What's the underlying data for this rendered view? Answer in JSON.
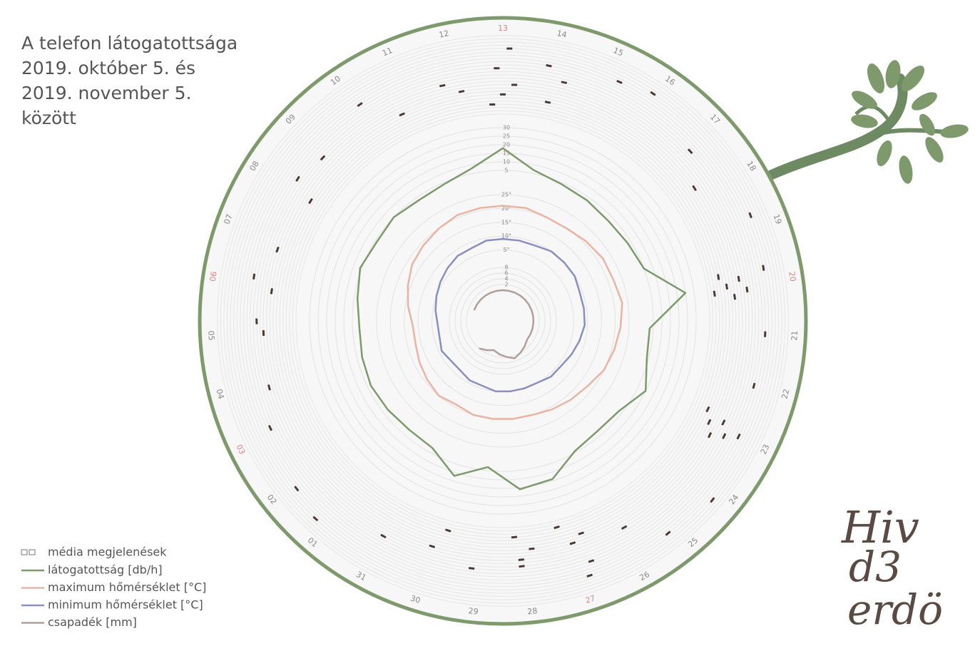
{
  "chart_data": {
    "type": "radial",
    "title": [
      "A telefon látogatottsága",
      "2019. október 5. és",
      "2019. november 5.",
      "között"
    ],
    "logo": [
      "Hiv",
      "d3",
      "erdö"
    ],
    "categories": [
      "05",
      "06",
      "07",
      "08",
      "09",
      "10",
      "11",
      "12",
      "13",
      "14",
      "15",
      "16",
      "17",
      "18",
      "19",
      "20",
      "21",
      "22",
      "23",
      "24",
      "25",
      "26",
      "27",
      "28",
      "29",
      "30",
      "31",
      "01",
      "02",
      "03",
      "04"
    ],
    "weekend": [
      1,
      8,
      15,
      22,
      29
    ],
    "weekend_color": "#e88080",
    "legend_media": "média megjelenések",
    "series": [
      {
        "name": "látogatottság [db/h]",
        "color": "#7e9a6c",
        "ring": "visits",
        "values": [
          1,
          3,
          6,
          4,
          5,
          3,
          4,
          8,
          18,
          7,
          4,
          3,
          2,
          3,
          5,
          25,
          3,
          4,
          10,
          3,
          2,
          4,
          14,
          16,
          3,
          12,
          2,
          1,
          2,
          3,
          2
        ]
      },
      {
        "name": "maximum hőmérséklet [°C]",
        "color": "#e8b4a4",
        "ring": "temp",
        "values": [
          12,
          14,
          16,
          18,
          19,
          20,
          21,
          21,
          21,
          21,
          20,
          20,
          21,
          22,
          22,
          23,
          22,
          21,
          20,
          18,
          17,
          16,
          15,
          15,
          15,
          15,
          14,
          15,
          14,
          13,
          12
        ]
      },
      {
        "name": "minimum hőmérséklet [°C]",
        "color": "#8a8fbf",
        "ring": "temp",
        "values": [
          3,
          4,
          5,
          6,
          7,
          8,
          8,
          9,
          9,
          9,
          9,
          10,
          10,
          10,
          9,
          9,
          9,
          8,
          7,
          6,
          6,
          5,
          5,
          5,
          5,
          4,
          4,
          3,
          3,
          4,
          3
        ]
      },
      {
        "name": "csapadék [mm]",
        "color": "#b0a09c",
        "ring": "precip",
        "values": [
          null,
          null,
          0,
          0,
          0,
          0,
          0,
          0,
          0,
          0,
          0,
          0,
          0,
          0,
          0,
          0,
          0,
          0,
          0,
          0,
          1,
          2,
          3,
          2,
          1,
          0,
          1,
          2,
          null,
          null,
          null
        ]
      }
    ],
    "rings": {
      "visits": {
        "ylim": [
          0,
          30
        ],
        "yticks": [
          5,
          10,
          15,
          20,
          25,
          30
        ]
      },
      "temp": {
        "ylim": [
          0,
          25
        ],
        "yticks": [
          {
            "value": 5,
            "label": "5°"
          },
          {
            "value": 10,
            "label": "10°"
          },
          {
            "value": 15,
            "label": "15°"
          },
          {
            "value": 20,
            "label": "20°"
          },
          {
            "value": 25,
            "label": "25°"
          }
        ]
      },
      "precip": {
        "ylim": [
          0,
          8
        ],
        "yticks": [
          2,
          4,
          6,
          8
        ]
      }
    },
    "sessions": {
      "day": [
        8,
        8,
        8,
        8,
        7,
        7,
        9,
        9,
        9,
        15,
        15,
        15,
        15,
        15,
        15,
        18,
        18,
        18,
        18,
        18,
        22,
        22,
        23,
        23,
        23,
        22,
        0,
        0,
        1,
        1,
        2,
        3,
        3,
        4,
        5,
        6,
        26,
        27,
        28,
        29,
        25,
        25,
        10,
        11,
        12,
        14,
        16,
        19,
        21,
        24,
        13,
        17,
        20,
        30,
        8,
        15,
        18,
        22,
        22,
        23
      ],
      "hour": [
        3,
        6,
        9,
        14,
        8,
        11,
        5,
        12,
        16,
        2,
        4,
        6,
        8,
        10,
        12,
        5,
        7,
        9,
        11,
        13,
        6,
        8,
        3,
        7,
        10,
        15,
        10,
        12,
        8,
        14,
        9,
        6,
        13,
        11,
        16,
        7,
        12,
        20,
        18,
        15,
        3,
        9,
        18,
        20,
        14,
        19,
        17,
        21,
        10,
        13,
        8,
        16,
        19,
        11,
        20,
        18,
        17,
        2,
        19,
        12
      ],
      "color": "#4a3a36"
    }
  }
}
